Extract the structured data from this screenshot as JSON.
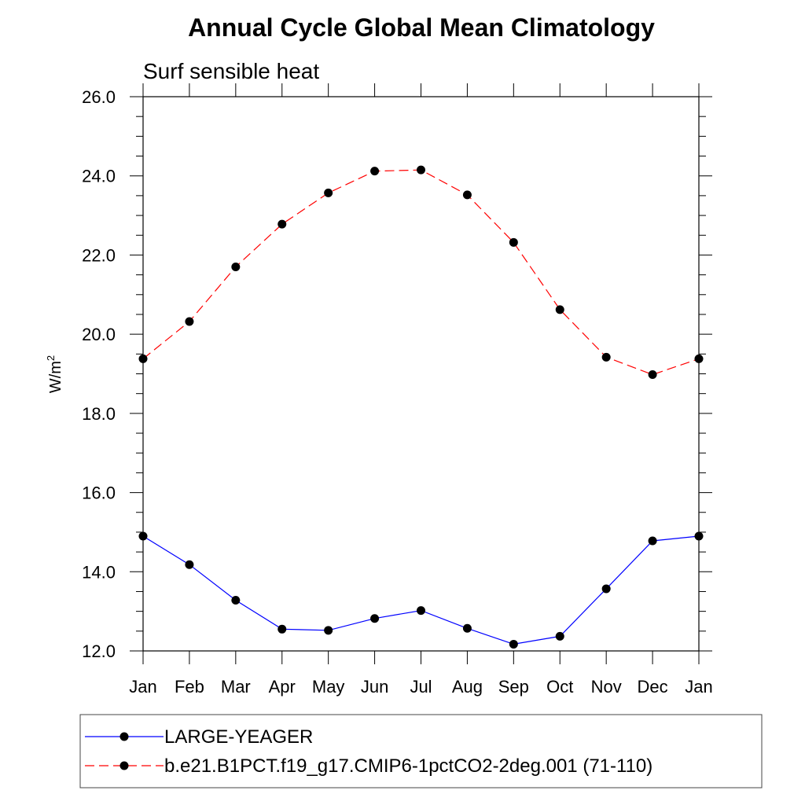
{
  "chart_data": {
    "type": "line",
    "title": "Annual Cycle Global Mean Climatology",
    "subtitle": "Surf sensible heat",
    "ylabel_base": "W/m",
    "ylabel_sup": "2",
    "xlabel": "",
    "categories": [
      "Jan",
      "Feb",
      "Mar",
      "Apr",
      "May",
      "Jun",
      "Jul",
      "Aug",
      "Sep",
      "Oct",
      "Nov",
      "Dec",
      "Jan"
    ],
    "ylim": [
      12.0,
      26.0
    ],
    "yticks": [
      "12.0",
      "14.0",
      "16.0",
      "18.0",
      "20.0",
      "22.0",
      "24.0",
      "26.0"
    ],
    "series": [
      {
        "name": "LARGE-YEAGER",
        "color": "#0000ff",
        "style": "solid",
        "values": [
          14.9,
          14.18,
          13.28,
          12.55,
          12.52,
          12.82,
          13.02,
          12.57,
          12.17,
          12.37,
          13.57,
          14.78,
          14.9
        ]
      },
      {
        "name": "b.e21.B1PCT.f19_g17.CMIP6-1pctCO2-2deg.001 (71-110)",
        "color": "#ff0000",
        "style": "dashed",
        "values": [
          19.38,
          20.32,
          21.7,
          22.78,
          23.57,
          24.12,
          24.15,
          23.52,
          22.32,
          20.62,
          19.42,
          18.98,
          19.38
        ]
      }
    ],
    "legend_position": "bottom"
  }
}
